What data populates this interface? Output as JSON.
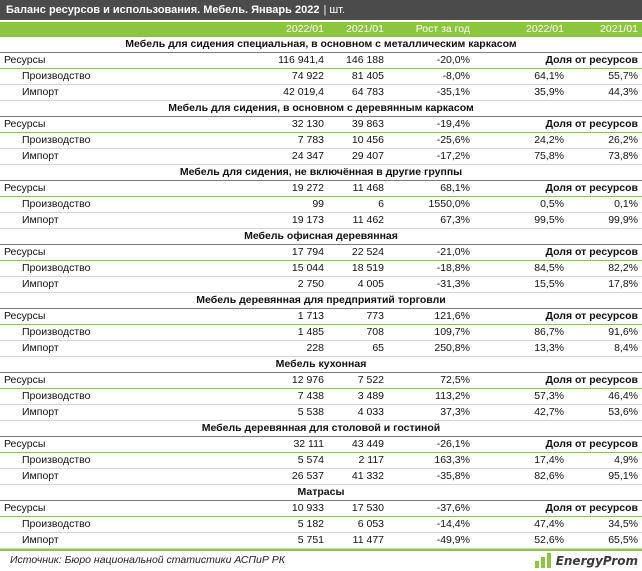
{
  "header": {
    "title": "Баланс ресурсов и использования. Мебель. Январь 2022",
    "unit": "| шт."
  },
  "columns": [
    "2022/01",
    "2021/01",
    "Рост за год",
    "2022/01",
    "2021/01"
  ],
  "groups": [
    {
      "title": "Мебель для сидения специальная, в основном с металлическим каркасом",
      "rows": [
        {
          "label": "Ресурсы",
          "v2022": "116 941,4",
          "v2021": "146 188",
          "growth": "-20,0%",
          "share_label": "Доля от ресурсов"
        },
        {
          "label": "Производство",
          "v2022": "74 922",
          "v2021": "81 405",
          "growth": "-8,0%",
          "share2022": "64,1%",
          "share2021": "55,7%"
        },
        {
          "label": "Импорт",
          "v2022": "42 019,4",
          "v2021": "64 783",
          "growth": "-35,1%",
          "share2022": "35,9%",
          "share2021": "44,3%"
        }
      ]
    },
    {
      "title": "Мебель для сидения, в основном с деревянным каркасом",
      "rows": [
        {
          "label": "Ресурсы",
          "v2022": "32 130",
          "v2021": "39 863",
          "growth": "-19,4%",
          "share_label": "Доля от ресурсов"
        },
        {
          "label": "Производство",
          "v2022": "7 783",
          "v2021": "10 456",
          "growth": "-25,6%",
          "share2022": "24,2%",
          "share2021": "26,2%"
        },
        {
          "label": "Импорт",
          "v2022": "24 347",
          "v2021": "29 407",
          "growth": "-17,2%",
          "share2022": "75,8%",
          "share2021": "73,8%"
        }
      ]
    },
    {
      "title": "Мебель для сидения, не включённая в другие группы",
      "rows": [
        {
          "label": "Ресурсы",
          "v2022": "19 272",
          "v2021": "11 468",
          "growth": "68,1%",
          "share_label": "Доля от ресурсов"
        },
        {
          "label": "Производство",
          "v2022": "99",
          "v2021": "6",
          "growth": "1550,0%",
          "share2022": "0,5%",
          "share2021": "0,1%"
        },
        {
          "label": "Импорт",
          "v2022": "19 173",
          "v2021": "11 462",
          "growth": "67,3%",
          "share2022": "99,5%",
          "share2021": "99,9%"
        }
      ]
    },
    {
      "title": "Мебель офисная деревянная",
      "rows": [
        {
          "label": "Ресурсы",
          "v2022": "17 794",
          "v2021": "22 524",
          "growth": "-21,0%",
          "share_label": "Доля от ресурсов"
        },
        {
          "label": "Производство",
          "v2022": "15 044",
          "v2021": "18 519",
          "growth": "-18,8%",
          "share2022": "84,5%",
          "share2021": "82,2%"
        },
        {
          "label": "Импорт",
          "v2022": "2 750",
          "v2021": "4 005",
          "growth": "-31,3%",
          "share2022": "15,5%",
          "share2021": "17,8%"
        }
      ]
    },
    {
      "title": "Мебель деревянная для предприятий торговли",
      "rows": [
        {
          "label": "Ресурсы",
          "v2022": "1 713",
          "v2021": "773",
          "growth": "121,6%",
          "share_label": "Доля от ресурсов"
        },
        {
          "label": "Производство",
          "v2022": "1 485",
          "v2021": "708",
          "growth": "109,7%",
          "share2022": "86,7%",
          "share2021": "91,6%"
        },
        {
          "label": "Импорт",
          "v2022": "228",
          "v2021": "65",
          "growth": "250,8%",
          "share2022": "13,3%",
          "share2021": "8,4%"
        }
      ]
    },
    {
      "title": "Мебель кухонная",
      "rows": [
        {
          "label": "Ресурсы",
          "v2022": "12 976",
          "v2021": "7 522",
          "growth": "72,5%",
          "share_label": "Доля от ресурсов"
        },
        {
          "label": "Производство",
          "v2022": "7 438",
          "v2021": "3 489",
          "growth": "113,2%",
          "share2022": "57,3%",
          "share2021": "46,4%"
        },
        {
          "label": "Импорт",
          "v2022": "5 538",
          "v2021": "4 033",
          "growth": "37,3%",
          "share2022": "42,7%",
          "share2021": "53,6%"
        }
      ]
    },
    {
      "title": "Мебель деревянная для столовой и гостиной",
      "rows": [
        {
          "label": "Ресурсы",
          "v2022": "32 111",
          "v2021": "43 449",
          "growth": "-26,1%",
          "share_label": "Доля от ресурсов"
        },
        {
          "label": "Производство",
          "v2022": "5 574",
          "v2021": "2 117",
          "growth": "163,3%",
          "share2022": "17,4%",
          "share2021": "4,9%"
        },
        {
          "label": "Импорт",
          "v2022": "26 537",
          "v2021": "41 332",
          "growth": "-35,8%",
          "share2022": "82,6%",
          "share2021": "95,1%"
        }
      ]
    },
    {
      "title": "Матрасы",
      "rows": [
        {
          "label": "Ресурсы",
          "v2022": "10 933",
          "v2021": "17 530",
          "growth": "-37,6%",
          "share_label": "Доля от ресурсов"
        },
        {
          "label": "Производство",
          "v2022": "5 182",
          "v2021": "6 053",
          "growth": "-14,4%",
          "share2022": "47,4%",
          "share2021": "34,5%"
        },
        {
          "label": "Импорт",
          "v2022": "5 751",
          "v2021": "11 477",
          "growth": "-49,9%",
          "share2022": "52,6%",
          "share2021": "65,5%"
        }
      ]
    }
  ],
  "footer": {
    "source": "Источник: Бюро национальной статистики АСПиР РК",
    "logo_text": "EnergyProm",
    "logo_color": "#8cc63f"
  }
}
